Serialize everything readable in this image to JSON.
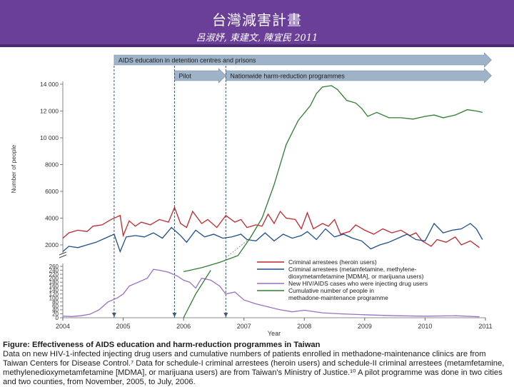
{
  "header": {
    "title": "台灣減害計畫",
    "authors": "呂淑妤,  束建文,  陳宜民   2011"
  },
  "colors": {
    "header_bg": "#6a3f98",
    "heroin": "#c0272d",
    "meth": "#1f4e8c",
    "hiv": "#9b6fc4",
    "methadone": "#2e7d32",
    "arrow": "#9fb3c8"
  },
  "chart_data": {
    "type": "line",
    "title": "",
    "xlabel": "Year",
    "ylabel": "Number of people",
    "x_ticks": [
      "2004",
      "2005",
      "2006",
      "2007",
      "2008",
      "2009",
      "2010",
      "2011"
    ],
    "upper_axis": {
      "ylim": [
        0,
        14000
      ],
      "ticks": [
        "2000",
        "4000",
        "6000",
        "8000",
        "10 000",
        "12 000",
        "14 000"
      ]
    },
    "lower_axis": {
      "ylim": [
        0,
        260
      ],
      "ticks": [
        "0",
        "20",
        "40",
        "60",
        "80",
        "100",
        "120",
        "140",
        "160",
        "180",
        "200",
        "220",
        "240",
        "260"
      ]
    },
    "phases": [
      {
        "label": "AIDS education in detention centres and prisons",
        "start": 2004.85,
        "end": 2011.1
      },
      {
        "label": "Pilot",
        "start": 2005.85,
        "end": 2006.7
      },
      {
        "label": "Nationwide harm-reduction programmes",
        "start": 2006.7,
        "end": 2011.1
      }
    ],
    "series": [
      {
        "name": "Criminal arrestees (heroin users)",
        "axis": "upper",
        "x": [
          2004.0,
          2004.1,
          2004.25,
          2004.4,
          2004.5,
          2004.65,
          2004.8,
          2004.95,
          2005.0,
          2005.1,
          2005.2,
          2005.3,
          2005.45,
          2005.6,
          2005.75,
          2005.85,
          2005.95,
          2006.05,
          2006.15,
          2006.3,
          2006.4,
          2006.55,
          2006.7,
          2006.85,
          2006.95,
          2007.05,
          2007.2,
          2007.3,
          2007.4,
          2007.5,
          2007.6,
          2007.7,
          2007.85,
          2007.95,
          2008.05,
          2008.15,
          2008.3,
          2008.4,
          2008.5,
          2008.6,
          2008.75,
          2008.85,
          2009.0,
          2009.15,
          2009.3,
          2009.45,
          2009.6,
          2009.75,
          2009.85,
          2009.95,
          2010.1,
          2010.2,
          2010.35,
          2010.5,
          2010.6,
          2010.75,
          2010.9
        ],
        "values": [
          2500,
          2900,
          3100,
          3000,
          3400,
          3500,
          3900,
          4200,
          2700,
          3800,
          3400,
          3700,
          3500,
          3900,
          3700,
          4800,
          3600,
          3300,
          4500,
          3600,
          3900,
          3300,
          4200,
          3700,
          3900,
          3300,
          3500,
          3400,
          4300,
          3600,
          4500,
          4000,
          3900,
          3200,
          4400,
          3200,
          3600,
          3400,
          3900,
          2800,
          3000,
          3500,
          3100,
          2800,
          3200,
          2900,
          3100,
          2700,
          2900,
          2300,
          1900,
          2400,
          2200,
          2600,
          2000,
          2300,
          1800
        ]
      },
      {
        "name": "Criminal arrestees (metamfetamine, methylenedioxymetamfetamine [MDMA], or marijuana users)",
        "axis": "upper",
        "x": [
          2004.0,
          2004.1,
          2004.25,
          2004.4,
          2004.55,
          2004.7,
          2004.85,
          2004.95,
          2005.05,
          2005.2,
          2005.35,
          2005.5,
          2005.65,
          2005.8,
          2005.95,
          2006.05,
          2006.2,
          2006.35,
          2006.5,
          2006.65,
          2006.8,
          2006.95,
          2007.05,
          2007.2,
          2007.35,
          2007.5,
          2007.65,
          2007.8,
          2007.95,
          2008.05,
          2008.2,
          2008.35,
          2008.5,
          2008.65,
          2008.8,
          2008.95,
          2009.1,
          2009.25,
          2009.4,
          2009.55,
          2009.7,
          2009.85,
          2010.0,
          2010.15,
          2010.3,
          2010.45,
          2010.6,
          2010.75,
          2010.85,
          2010.95
        ],
        "values": [
          1500,
          1900,
          1800,
          2000,
          2200,
          2500,
          2800,
          1500,
          2600,
          2700,
          2600,
          2900,
          2500,
          3300,
          2700,
          2200,
          3100,
          2600,
          2800,
          2500,
          2600,
          2800,
          2400,
          2300,
          2900,
          2300,
          2800,
          2500,
          2700,
          3000,
          2400,
          3200,
          2600,
          2800,
          2500,
          2300,
          1700,
          2000,
          2200,
          2500,
          2800,
          2400,
          2300,
          3600,
          2900,
          3100,
          3200,
          3600,
          3200,
          2400
        ]
      },
      {
        "name": "New HIV/AIDS cases who were injecting drug users",
        "axis": "lower",
        "x": [
          2004.0,
          2004.15,
          2004.3,
          2004.45,
          2004.6,
          2004.75,
          2004.9,
          2005.0,
          2005.1,
          2005.25,
          2005.4,
          2005.5,
          2005.6,
          2005.75,
          2005.9,
          2006.0,
          2006.1,
          2006.2,
          2006.3,
          2006.45,
          2006.6,
          2006.7,
          2006.85,
          2007.0,
          2007.2,
          2007.4,
          2007.6,
          2007.8,
          2008.0,
          2008.3,
          2008.6,
          2009.0,
          2009.5,
          2010.0,
          2010.5,
          2010.9
        ],
        "values": [
          8,
          6,
          10,
          18,
          40,
          80,
          100,
          120,
          160,
          180,
          200,
          245,
          240,
          230,
          210,
          190,
          180,
          150,
          200,
          190,
          160,
          120,
          130,
          90,
          70,
          55,
          40,
          30,
          38,
          25,
          20,
          15,
          10,
          8,
          10,
          5
        ]
      },
      {
        "name": "Cumulative number of people in methadone-maintenance programme",
        "axis": "upper",
        "x": [
          2006.0,
          2006.3,
          2006.6,
          2006.9,
          2007.1,
          2007.3,
          2007.5,
          2007.7,
          2007.9,
          2008.1,
          2008.2,
          2008.3,
          2008.45,
          2008.55,
          2008.7,
          2008.85,
          2008.95,
          2009.05,
          2009.2,
          2009.4,
          2009.6,
          2009.8,
          2010.0,
          2010.15,
          2010.3,
          2010.5,
          2010.7,
          2010.85,
          2010.95
        ],
        "values": [
          0,
          300,
          700,
          1200,
          2500,
          4000,
          6500,
          9500,
          11300,
          12400,
          13300,
          13800,
          13900,
          13600,
          12800,
          12600,
          12200,
          11600,
          11900,
          11500,
          11500,
          11400,
          11600,
          11700,
          11500,
          11700,
          12100,
          12000,
          11900
        ]
      }
    ]
  },
  "legend": [
    {
      "label": "Criminal arrestees (heroin users)",
      "color_key": "heroin"
    },
    {
      "label": "Criminal arrestees (metamfetamine, methylene-",
      "label2": "dioxymetamfetamine [MDMA], or marijuana users)",
      "color_key": "meth"
    },
    {
      "label": "New HIV/AIDS cases who were injecting drug users",
      "color_key": "hiv"
    },
    {
      "label": "Cumulative number of people in",
      "label2": "methadone-maintenance programme",
      "color_key": "methadone"
    }
  ],
  "caption": {
    "title": "Figure: Effectiveness of AIDS education and harm-reduction programmes in Taiwan",
    "body": "Data on new HIV-1-infected injecting drug users and cumulative numbers of patients enrolled in methadone-maintenance clinics are from Taiwan Centers for Disease Control.⁷ Data for schedule-I criminal arrestees (heroin users) and schedule-II criminal arrestees (metamfetamine, methylenedioxymetamfetamine [MDMA], or marijuana users) are from Taiwan's Ministry of Justice.¹⁰ A pilot programme was done in two cities and two counties, from November, 2005, to July, 2006."
  }
}
